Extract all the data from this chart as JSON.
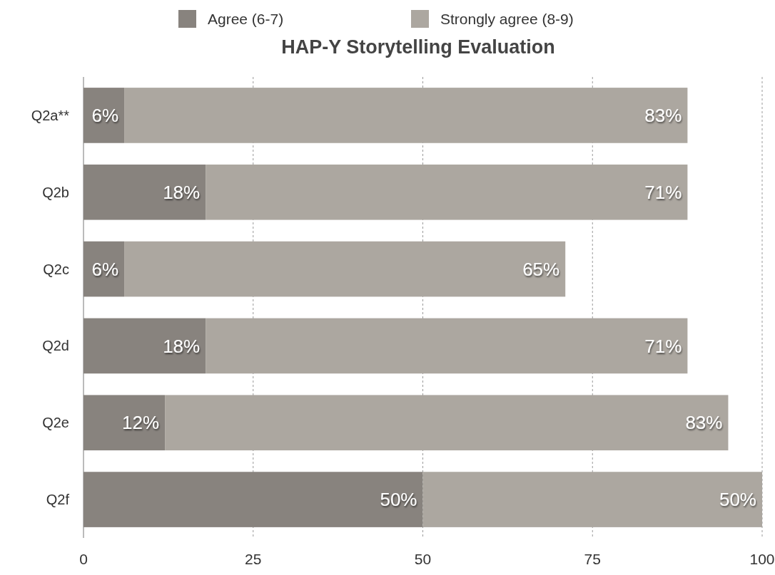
{
  "chart_data": {
    "type": "bar",
    "orientation": "horizontal",
    "stacked": true,
    "title": "HAP-Y Storytelling Evaluation",
    "categories": [
      "Q2a**",
      "Q2b",
      "Q2c",
      "Q2d",
      "Q2e",
      "Q2f"
    ],
    "series": [
      {
        "name": "Agree (6-7)",
        "color": "#88837e",
        "values": [
          6,
          18,
          6,
          18,
          12,
          50
        ],
        "value_labels": [
          "6%",
          "18%",
          "6%",
          "18%",
          "12%",
          "50%"
        ]
      },
      {
        "name": "Strongly agree (8-9)",
        "color": "#aca7a0",
        "values": [
          83,
          71,
          65,
          71,
          83,
          50
        ],
        "value_labels": [
          "83%",
          "71%",
          "65%",
          "71%",
          "83%",
          "50%"
        ]
      }
    ],
    "xlim": [
      0,
      100
    ],
    "xticks": [
      0,
      25,
      50,
      75,
      100
    ],
    "grid": "x",
    "legend": "top"
  }
}
